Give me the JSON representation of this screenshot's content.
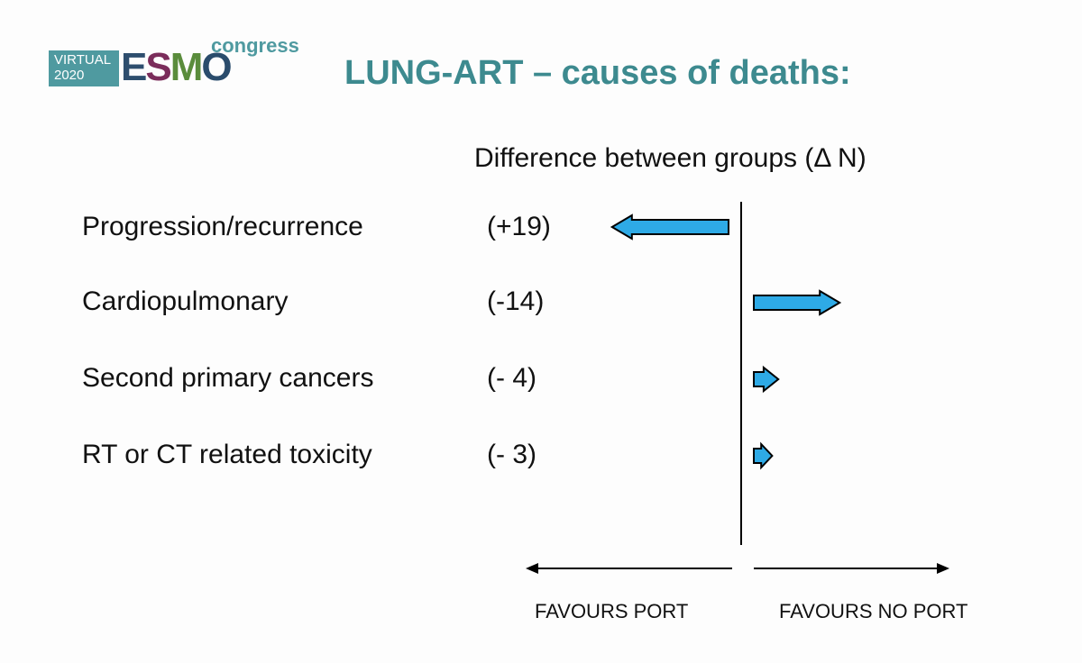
{
  "logo": {
    "line1": "VIRTUAL",
    "line2": "2020",
    "mark": [
      "E",
      "S",
      "M",
      "O"
    ],
    "suffix": "congress"
  },
  "colors": {
    "accent": "#3d8a8f",
    "arrow_fill": "#2eaae6",
    "arrow_stroke": "#000000"
  },
  "chart_data": {
    "type": "bar",
    "title": "LUNG-ART – causes of deaths:",
    "subtitle": "Difference between groups (Δ N)",
    "categories": [
      "Progression/recurrence",
      "Cardiopulmonary",
      "Second primary cancers",
      "RT or CT related toxicity"
    ],
    "values": [
      19,
      -14,
      -4,
      -3
    ],
    "value_labels": [
      "(+19)",
      "(-14)",
      "(- 4)",
      "(- 3)"
    ],
    "direction_labels": {
      "left": "FAVOURS PORT",
      "right": "FAVOURS NO PORT"
    },
    "orientation": "horizontal",
    "grid": false,
    "legend": "none"
  }
}
